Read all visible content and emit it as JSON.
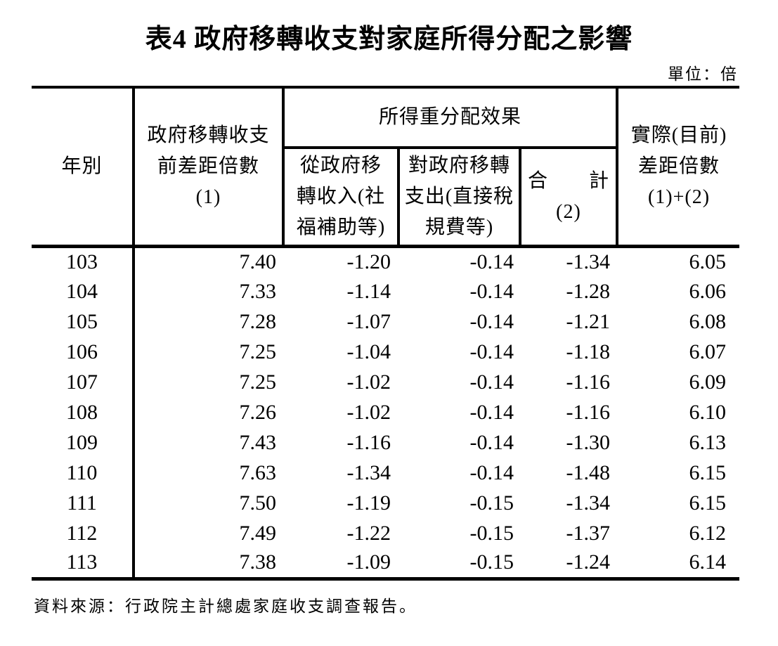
{
  "title": "表4 政府移轉收支對家庭所得分配之影響",
  "unit_label": "單位：倍",
  "table": {
    "header": {
      "year": "年別",
      "pre_gap": [
        "政府移轉收支",
        "前差距倍數",
        "(1)"
      ],
      "group": "所得重分配效果",
      "sub_income": [
        "從政府移",
        "轉收入(社",
        "福補助等)"
      ],
      "sub_expense": [
        "對政府移轉",
        "支出(直接稅",
        "規費等)"
      ],
      "sub_total": [
        "合　　計",
        "(2)"
      ],
      "actual": [
        "實際(目前)",
        "差距倍數",
        "(1)+(2)"
      ]
    },
    "rows": [
      {
        "year": "103",
        "pre": "7.40",
        "income": "-1.20",
        "expense": "-0.14",
        "total": "-1.34",
        "actual": "6.05"
      },
      {
        "year": "104",
        "pre": "7.33",
        "income": "-1.14",
        "expense": "-0.14",
        "total": "-1.28",
        "actual": "6.06"
      },
      {
        "year": "105",
        "pre": "7.28",
        "income": "-1.07",
        "expense": "-0.14",
        "total": "-1.21",
        "actual": "6.08"
      },
      {
        "year": "106",
        "pre": "7.25",
        "income": "-1.04",
        "expense": "-0.14",
        "total": "-1.18",
        "actual": "6.07"
      },
      {
        "year": "107",
        "pre": "7.25",
        "income": "-1.02",
        "expense": "-0.14",
        "total": "-1.16",
        "actual": "6.09"
      },
      {
        "year": "108",
        "pre": "7.26",
        "income": "-1.02",
        "expense": "-0.14",
        "total": "-1.16",
        "actual": "6.10"
      },
      {
        "year": "109",
        "pre": "7.43",
        "income": "-1.16",
        "expense": "-0.14",
        "total": "-1.30",
        "actual": "6.13"
      },
      {
        "year": "110",
        "pre": "7.63",
        "income": "-1.34",
        "expense": "-0.14",
        "total": "-1.48",
        "actual": "6.15"
      },
      {
        "year": "111",
        "pre": "7.50",
        "income": "-1.19",
        "expense": "-0.15",
        "total": "-1.34",
        "actual": "6.15"
      },
      {
        "year": "112",
        "pre": "7.49",
        "income": "-1.22",
        "expense": "-0.15",
        "total": "-1.37",
        "actual": "6.12"
      },
      {
        "year": "113",
        "pre": "7.38",
        "income": "-1.09",
        "expense": "-0.15",
        "total": "-1.24",
        "actual": "6.14"
      }
    ]
  },
  "source_note": "資料來源：行政院主計總處家庭收支調查報告。",
  "colors": {
    "text": "#000000",
    "background": "#ffffff",
    "border": "#000000"
  }
}
